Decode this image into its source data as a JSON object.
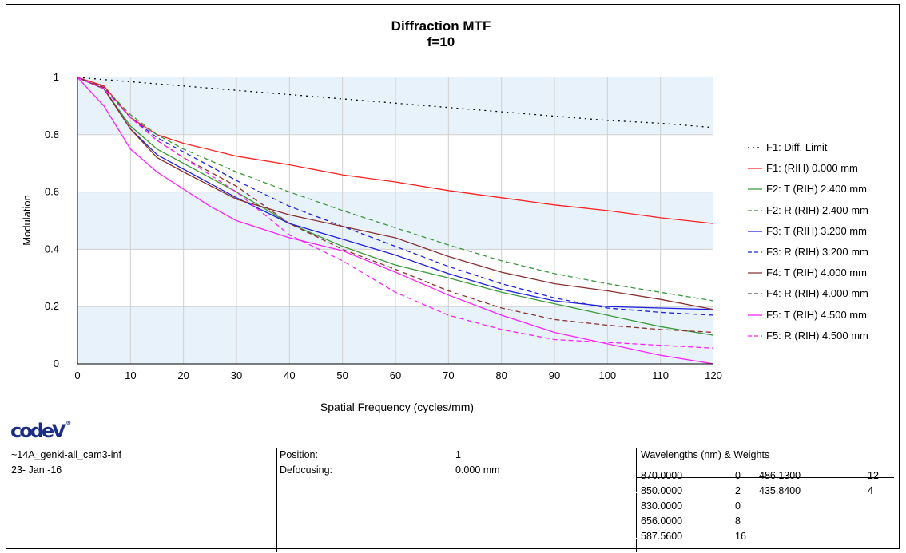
{
  "chart_data": {
    "type": "line",
    "title": "Diffraction MTF",
    "subtitle": "f=10",
    "xlabel": "Spatial Frequency (cycles/mm)",
    "ylabel": "Modulation",
    "xlim": [
      0,
      120
    ],
    "ylim": [
      0,
      1
    ],
    "xticks": [
      0,
      10,
      20,
      30,
      40,
      50,
      60,
      70,
      80,
      90,
      100,
      110,
      120
    ],
    "yticks": [
      0,
      0.2,
      0.4,
      0.6,
      0.8,
      1
    ],
    "grid": true,
    "legend_position": "right",
    "series": [
      {
        "name": "F1: Diff. Limit",
        "color": "#000000",
        "dash": "dotted",
        "x": [
          0,
          10,
          20,
          30,
          40,
          50,
          60,
          70,
          80,
          90,
          100,
          110,
          120
        ],
        "y": [
          1,
          0.985,
          0.97,
          0.955,
          0.94,
          0.925,
          0.91,
          0.895,
          0.88,
          0.865,
          0.85,
          0.84,
          0.825
        ]
      },
      {
        "name": "F1: (RIH) 0.000 mm",
        "color": "#ff2020",
        "dash": "solid",
        "x": [
          0,
          5,
          10,
          15,
          20,
          30,
          40,
          50,
          60,
          70,
          80,
          90,
          100,
          110,
          120
        ],
        "y": [
          1,
          0.97,
          0.86,
          0.8,
          0.77,
          0.725,
          0.695,
          0.66,
          0.635,
          0.605,
          0.58,
          0.555,
          0.535,
          0.51,
          0.49
        ]
      },
      {
        "name": "F2: T (RIH) 2.400 mm",
        "color": "#3a9a3a",
        "dash": "solid",
        "x": [
          0,
          5,
          10,
          15,
          20,
          30,
          40,
          50,
          60,
          70,
          80,
          90,
          100,
          110,
          120
        ],
        "y": [
          1,
          0.96,
          0.83,
          0.75,
          0.7,
          0.6,
          0.49,
          0.41,
          0.345,
          0.3,
          0.25,
          0.21,
          0.17,
          0.13,
          0.1
        ]
      },
      {
        "name": "F2: R (RIH) 2.400 mm",
        "color": "#3a9a3a",
        "dash": "dashed",
        "x": [
          0,
          5,
          10,
          15,
          20,
          30,
          40,
          50,
          60,
          70,
          80,
          90,
          100,
          110,
          120
        ],
        "y": [
          1,
          0.965,
          0.87,
          0.8,
          0.75,
          0.67,
          0.6,
          0.535,
          0.475,
          0.415,
          0.36,
          0.315,
          0.28,
          0.25,
          0.22
        ]
      },
      {
        "name": "F3: T (RIH) 3.200 mm",
        "color": "#2020e0",
        "dash": "solid",
        "x": [
          0,
          5,
          10,
          15,
          20,
          30,
          40,
          50,
          60,
          70,
          80,
          90,
          100,
          110,
          120
        ],
        "y": [
          1,
          0.96,
          0.82,
          0.73,
          0.68,
          0.58,
          0.49,
          0.435,
          0.38,
          0.315,
          0.26,
          0.22,
          0.2,
          0.195,
          0.19
        ]
      },
      {
        "name": "F3: R (RIH) 3.200 mm",
        "color": "#2020e0",
        "dash": "dashed",
        "x": [
          0,
          5,
          10,
          15,
          20,
          30,
          40,
          50,
          60,
          70,
          80,
          90,
          100,
          110,
          120
        ],
        "y": [
          1,
          0.965,
          0.86,
          0.79,
          0.74,
          0.64,
          0.55,
          0.48,
          0.41,
          0.34,
          0.28,
          0.23,
          0.195,
          0.18,
          0.17
        ]
      },
      {
        "name": "F4: T (RIH) 4.000 mm",
        "color": "#8b3030",
        "dash": "solid",
        "x": [
          0,
          5,
          10,
          15,
          20,
          30,
          40,
          50,
          60,
          70,
          80,
          90,
          100,
          110,
          120
        ],
        "y": [
          1,
          0.96,
          0.82,
          0.72,
          0.67,
          0.575,
          0.52,
          0.48,
          0.44,
          0.375,
          0.32,
          0.28,
          0.255,
          0.225,
          0.19
        ]
      },
      {
        "name": "F4: R (RIH) 4.000 mm",
        "color": "#8b3030",
        "dash": "dashed",
        "x": [
          0,
          5,
          10,
          15,
          20,
          30,
          40,
          50,
          60,
          70,
          80,
          90,
          100,
          110,
          120
        ],
        "y": [
          1,
          0.965,
          0.86,
          0.78,
          0.72,
          0.62,
          0.49,
          0.4,
          0.33,
          0.255,
          0.195,
          0.155,
          0.135,
          0.12,
          0.11
        ]
      },
      {
        "name": "F5: T (RIH) 4.500 mm",
        "color": "#ff20ff",
        "dash": "solid",
        "x": [
          0,
          5,
          10,
          15,
          20,
          25,
          30,
          40,
          50,
          60,
          70,
          80,
          90,
          100,
          110,
          120
        ],
        "y": [
          1,
          0.9,
          0.75,
          0.67,
          0.61,
          0.55,
          0.5,
          0.44,
          0.395,
          0.32,
          0.24,
          0.17,
          0.11,
          0.07,
          0.03,
          0
        ]
      },
      {
        "name": "F5: R (RIH) 4.500 mm",
        "color": "#ff20ff",
        "dash": "dashed",
        "x": [
          0,
          5,
          10,
          15,
          20,
          30,
          40,
          50,
          60,
          70,
          80,
          90,
          100,
          110,
          120
        ],
        "y": [
          1,
          0.96,
          0.86,
          0.78,
          0.72,
          0.6,
          0.45,
          0.36,
          0.25,
          0.17,
          0.12,
          0.085,
          0.075,
          0.065,
          0.055
        ]
      }
    ]
  },
  "logo_text": "codeV",
  "info": {
    "lens_name": "~14A_genki-all_cam3-inf",
    "date": "23- Jan -16",
    "position_label": "Position:",
    "position_value": "1",
    "defocusing_label": "Defocusing:",
    "defocusing_value": "0.000 mm",
    "wavelengths_header": "Wavelengths (nm)  & Weights",
    "wavelengths_col1": [
      {
        "wl": "870.0000",
        "w": "0"
      },
      {
        "wl": "850.0000",
        "w": "2"
      },
      {
        "wl": "830.0000",
        "w": "0"
      },
      {
        "wl": "656.0000",
        "w": "8"
      },
      {
        "wl": "587.5600",
        "w": "16"
      }
    ],
    "wavelengths_col2": [
      {
        "wl": "486.1300",
        "w": "12"
      },
      {
        "wl": "435.8400",
        "w": "4"
      }
    ]
  }
}
